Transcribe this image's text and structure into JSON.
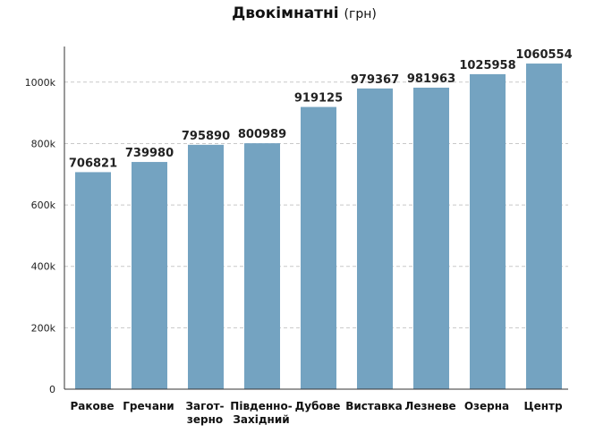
{
  "chart_data": {
    "type": "bar",
    "title": "Двокімнатні",
    "title_unit": "(грн)",
    "xlabel": "",
    "ylabel": "",
    "categories": [
      "Ракове",
      "Гречани",
      "Загот-\nзерно",
      "Південно-\nЗахідний",
      "Дубове",
      "Виставка",
      "Лезневе",
      "Озерна",
      "Центр"
    ],
    "values": [
      706821,
      739980,
      795890,
      800989,
      919125,
      979367,
      981963,
      1025958,
      1060554
    ],
    "ylim": [
      0,
      1116000
    ],
    "yticks": [
      0,
      200000,
      400000,
      600000,
      800000,
      1000000
    ],
    "ytick_labels": [
      "0",
      "200k",
      "400k",
      "600k",
      "800k",
      "1000k"
    ],
    "grid": "horizontal dashed",
    "colors": {
      "bar": "#74a3c1",
      "grid": "#c8c8c8",
      "axis": "#333333"
    }
  }
}
